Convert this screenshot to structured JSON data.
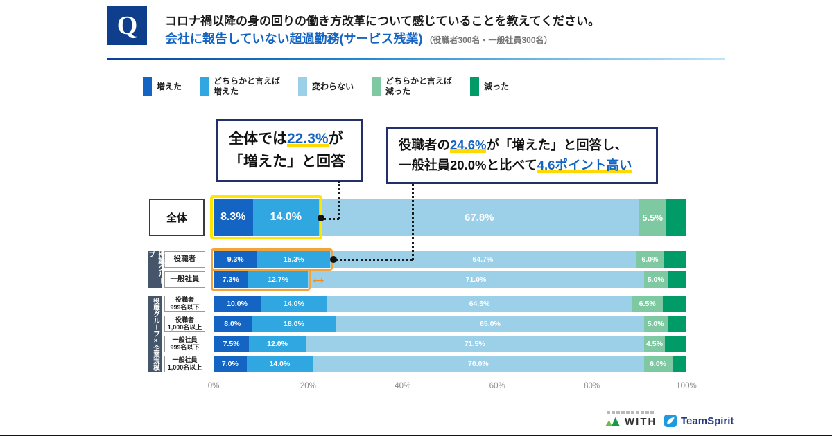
{
  "header": {
    "q_label": "Q",
    "title": "コロナ禍以降の身の回りの働き方改革について感じていることを教えてください。",
    "subtitle": "会社に報告していない超過勤務(サービス残業)",
    "subtitle_note": "（役職者300名・一般社員300名）"
  },
  "legend": [
    {
      "label": "増えた",
      "color": "#1464C4"
    },
    {
      "label": "どちらかと言えば\n増えた",
      "color": "#30A7E0"
    },
    {
      "label": "変わらない",
      "color": "#9BD0E8"
    },
    {
      "label": "どちらかと言えば\n減った",
      "color": "#7FC9A2"
    },
    {
      "label": "減った",
      "color": "#009B67"
    }
  ],
  "callouts": {
    "c1": {
      "p1": "全体では",
      "v1": "22.3%",
      "p2": "が",
      "line2": "「増えた」と回答"
    },
    "c2": {
      "p1": "役職者の",
      "v1": "24.6%",
      "p2": "が「増えた」と回答し、",
      "p3": "一般社員",
      "v2": "20.0%",
      "p4": "と比べて",
      "v3": "4.6ポイント高い"
    }
  },
  "chart_data": {
    "type": "bar",
    "stacked": true,
    "orientation": "horizontal",
    "title": "会社に報告していない超過勤務(サービス残業)",
    "value_unit": "%",
    "xlim": [
      0,
      100
    ],
    "x_ticks": [
      "0%",
      "20%",
      "40%",
      "60%",
      "80%",
      "100%"
    ],
    "categories": [
      "全体",
      "役職者",
      "一般社員",
      "役職者 999名以下",
      "役職者 1,000名以上",
      "一般社員 999名以下",
      "一般社員 1,000名以上"
    ],
    "series": [
      {
        "name": "増えた",
        "color": "#1464C4",
        "label_visible": true,
        "values": [
          8.3,
          9.3,
          7.3,
          10.0,
          8.0,
          7.5,
          7.0
        ]
      },
      {
        "name": "どちらかと言えば増えた",
        "color": "#30A7E0",
        "label_visible": true,
        "values": [
          14.0,
          15.3,
          12.7,
          14.0,
          18.0,
          12.0,
          14.0
        ]
      },
      {
        "name": "変わらない",
        "color": "#9BD0E8",
        "label_visible": true,
        "values": [
          67.8,
          64.7,
          71.0,
          64.5,
          65.0,
          71.5,
          70.0
        ]
      },
      {
        "name": "どちらかと言えば減った",
        "color": "#7FC9A2",
        "label_visible": true,
        "values": [
          5.5,
          6.0,
          5.0,
          6.5,
          5.0,
          4.5,
          6.0
        ]
      },
      {
        "name": "減った",
        "color": "#009B67",
        "label_visible": false,
        "values": [
          4.4,
          4.7,
          4.0,
          5.0,
          4.0,
          4.5,
          3.0
        ]
      }
    ]
  },
  "row_labels": [
    [
      "全体"
    ],
    [
      "役職者"
    ],
    [
      "一般社員"
    ],
    [
      "役職者",
      "999名以下"
    ],
    [
      "役職者",
      "1,000名以上"
    ],
    [
      "一般社員",
      "999名以下"
    ],
    [
      "一般社員",
      "1,000名以上"
    ]
  ],
  "row_groups": [
    {
      "label": "役職グループ",
      "rows": [
        1,
        2
      ]
    },
    {
      "label": "役職グループ×企業規模",
      "rows": [
        3,
        4,
        5,
        6
      ]
    }
  ],
  "highlights": {
    "primary_row": 0,
    "primary_color": "#FFE600",
    "secondary_rows": [
      1,
      2
    ],
    "secondary_color": "#F2A43C"
  },
  "axis": {
    "ticks": [
      "0%",
      "20%",
      "40%",
      "60%",
      "80%",
      "100%"
    ]
  },
  "icons": {
    "difference_arrow": "↔"
  },
  "colors": {
    "accent_blue": "#1464C4",
    "underline_yellow": "#FFD900",
    "callout_border": "#232F6B",
    "q_badge_bg": "#0F3E8C",
    "group_label_bg": "#45566B",
    "arrow_orange": "#F28A1E"
  },
  "footer": {
    "with_label": "WITH",
    "teamspirit_label": "TeamSpirit"
  }
}
